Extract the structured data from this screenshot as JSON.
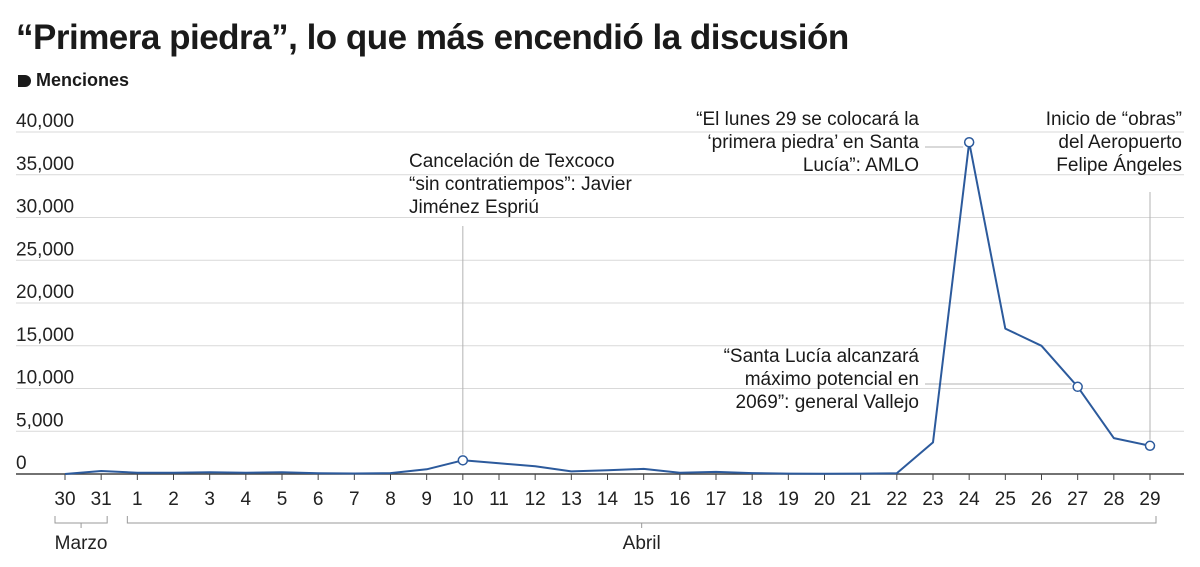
{
  "title": "“Primera piedra”, lo que más encendió la discusión",
  "legend": {
    "label": "Menciones"
  },
  "colors": {
    "line": "#2c5a9c",
    "grid": "#d9d9d9",
    "axis": "#444444",
    "leader": "#b3b3b3"
  },
  "chart_data": {
    "type": "line",
    "title": "“Primera piedra”, lo que más encendió la discusión",
    "ylabel": "Menciones",
    "ylim": [
      0,
      40000
    ],
    "yticks": [
      0,
      5000,
      10000,
      15000,
      20000,
      25000,
      30000,
      35000,
      40000
    ],
    "ytick_labels": [
      "0",
      "5,000",
      "10,000",
      "15,000",
      "20,000",
      "25,000",
      "30,000",
      "35,000",
      "40,000"
    ],
    "x": [
      "30",
      "31",
      "1",
      "2",
      "3",
      "4",
      "5",
      "6",
      "7",
      "8",
      "9",
      "10",
      "11",
      "12",
      "13",
      "14",
      "15",
      "16",
      "17",
      "18",
      "19",
      "20",
      "21",
      "22",
      "23",
      "24",
      "25",
      "26",
      "27",
      "28",
      "29"
    ],
    "x_groups": [
      {
        "label": "Marzo",
        "from": 0,
        "to": 1
      },
      {
        "label": "Abril",
        "from": 2,
        "to": 30
      }
    ],
    "grid": true,
    "series": [
      {
        "values": [
          0,
          350,
          150,
          150,
          200,
          150,
          200,
          80,
          60,
          100,
          550,
          1600,
          1250,
          900,
          300,
          450,
          600,
          150,
          250,
          100,
          50,
          30,
          50,
          80,
          3700,
          38800,
          17000,
          15000,
          10200,
          4200,
          3300
        ]
      }
    ],
    "annotations": [
      {
        "index": 11,
        "lines": [
          "Cancelación de Texcoco",
          "“sin contratiempos”:  Javier",
          "Jiménez Espriú"
        ]
      },
      {
        "index": 25,
        "lines": [
          "“El lunes 29 se  colocará la",
          "‘primera piedra’ en Santa",
          "Lucía”: AMLO"
        ]
      },
      {
        "index": 28,
        "lines": [
          "“Santa Lucía alcanzará",
          "máximo potencial en",
          "2069”: general Vallejo"
        ]
      },
      {
        "index": 30,
        "lines": [
          "Inicio  de “obras”",
          "del Aeropuerto",
          "Felipe Ángeles"
        ]
      }
    ]
  }
}
